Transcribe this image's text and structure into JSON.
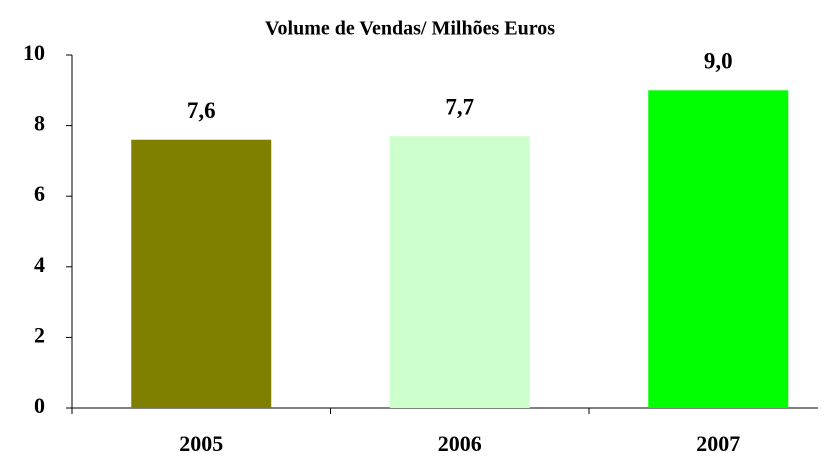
{
  "chart_data": {
    "type": "bar",
    "title": "Volume de Vendas/ Milhões Euros",
    "categories": [
      "2005",
      "2006",
      "2007"
    ],
    "values": [
      7.6,
      7.7,
      9.0
    ],
    "value_labels": [
      "7,6",
      "7,7",
      "9,0"
    ],
    "colors": [
      "#808000",
      "#ccffcc",
      "#00ff00"
    ],
    "ylim": [
      0,
      10
    ],
    "yticks": [
      0,
      2,
      4,
      6,
      8,
      10
    ],
    "grid": false
  }
}
